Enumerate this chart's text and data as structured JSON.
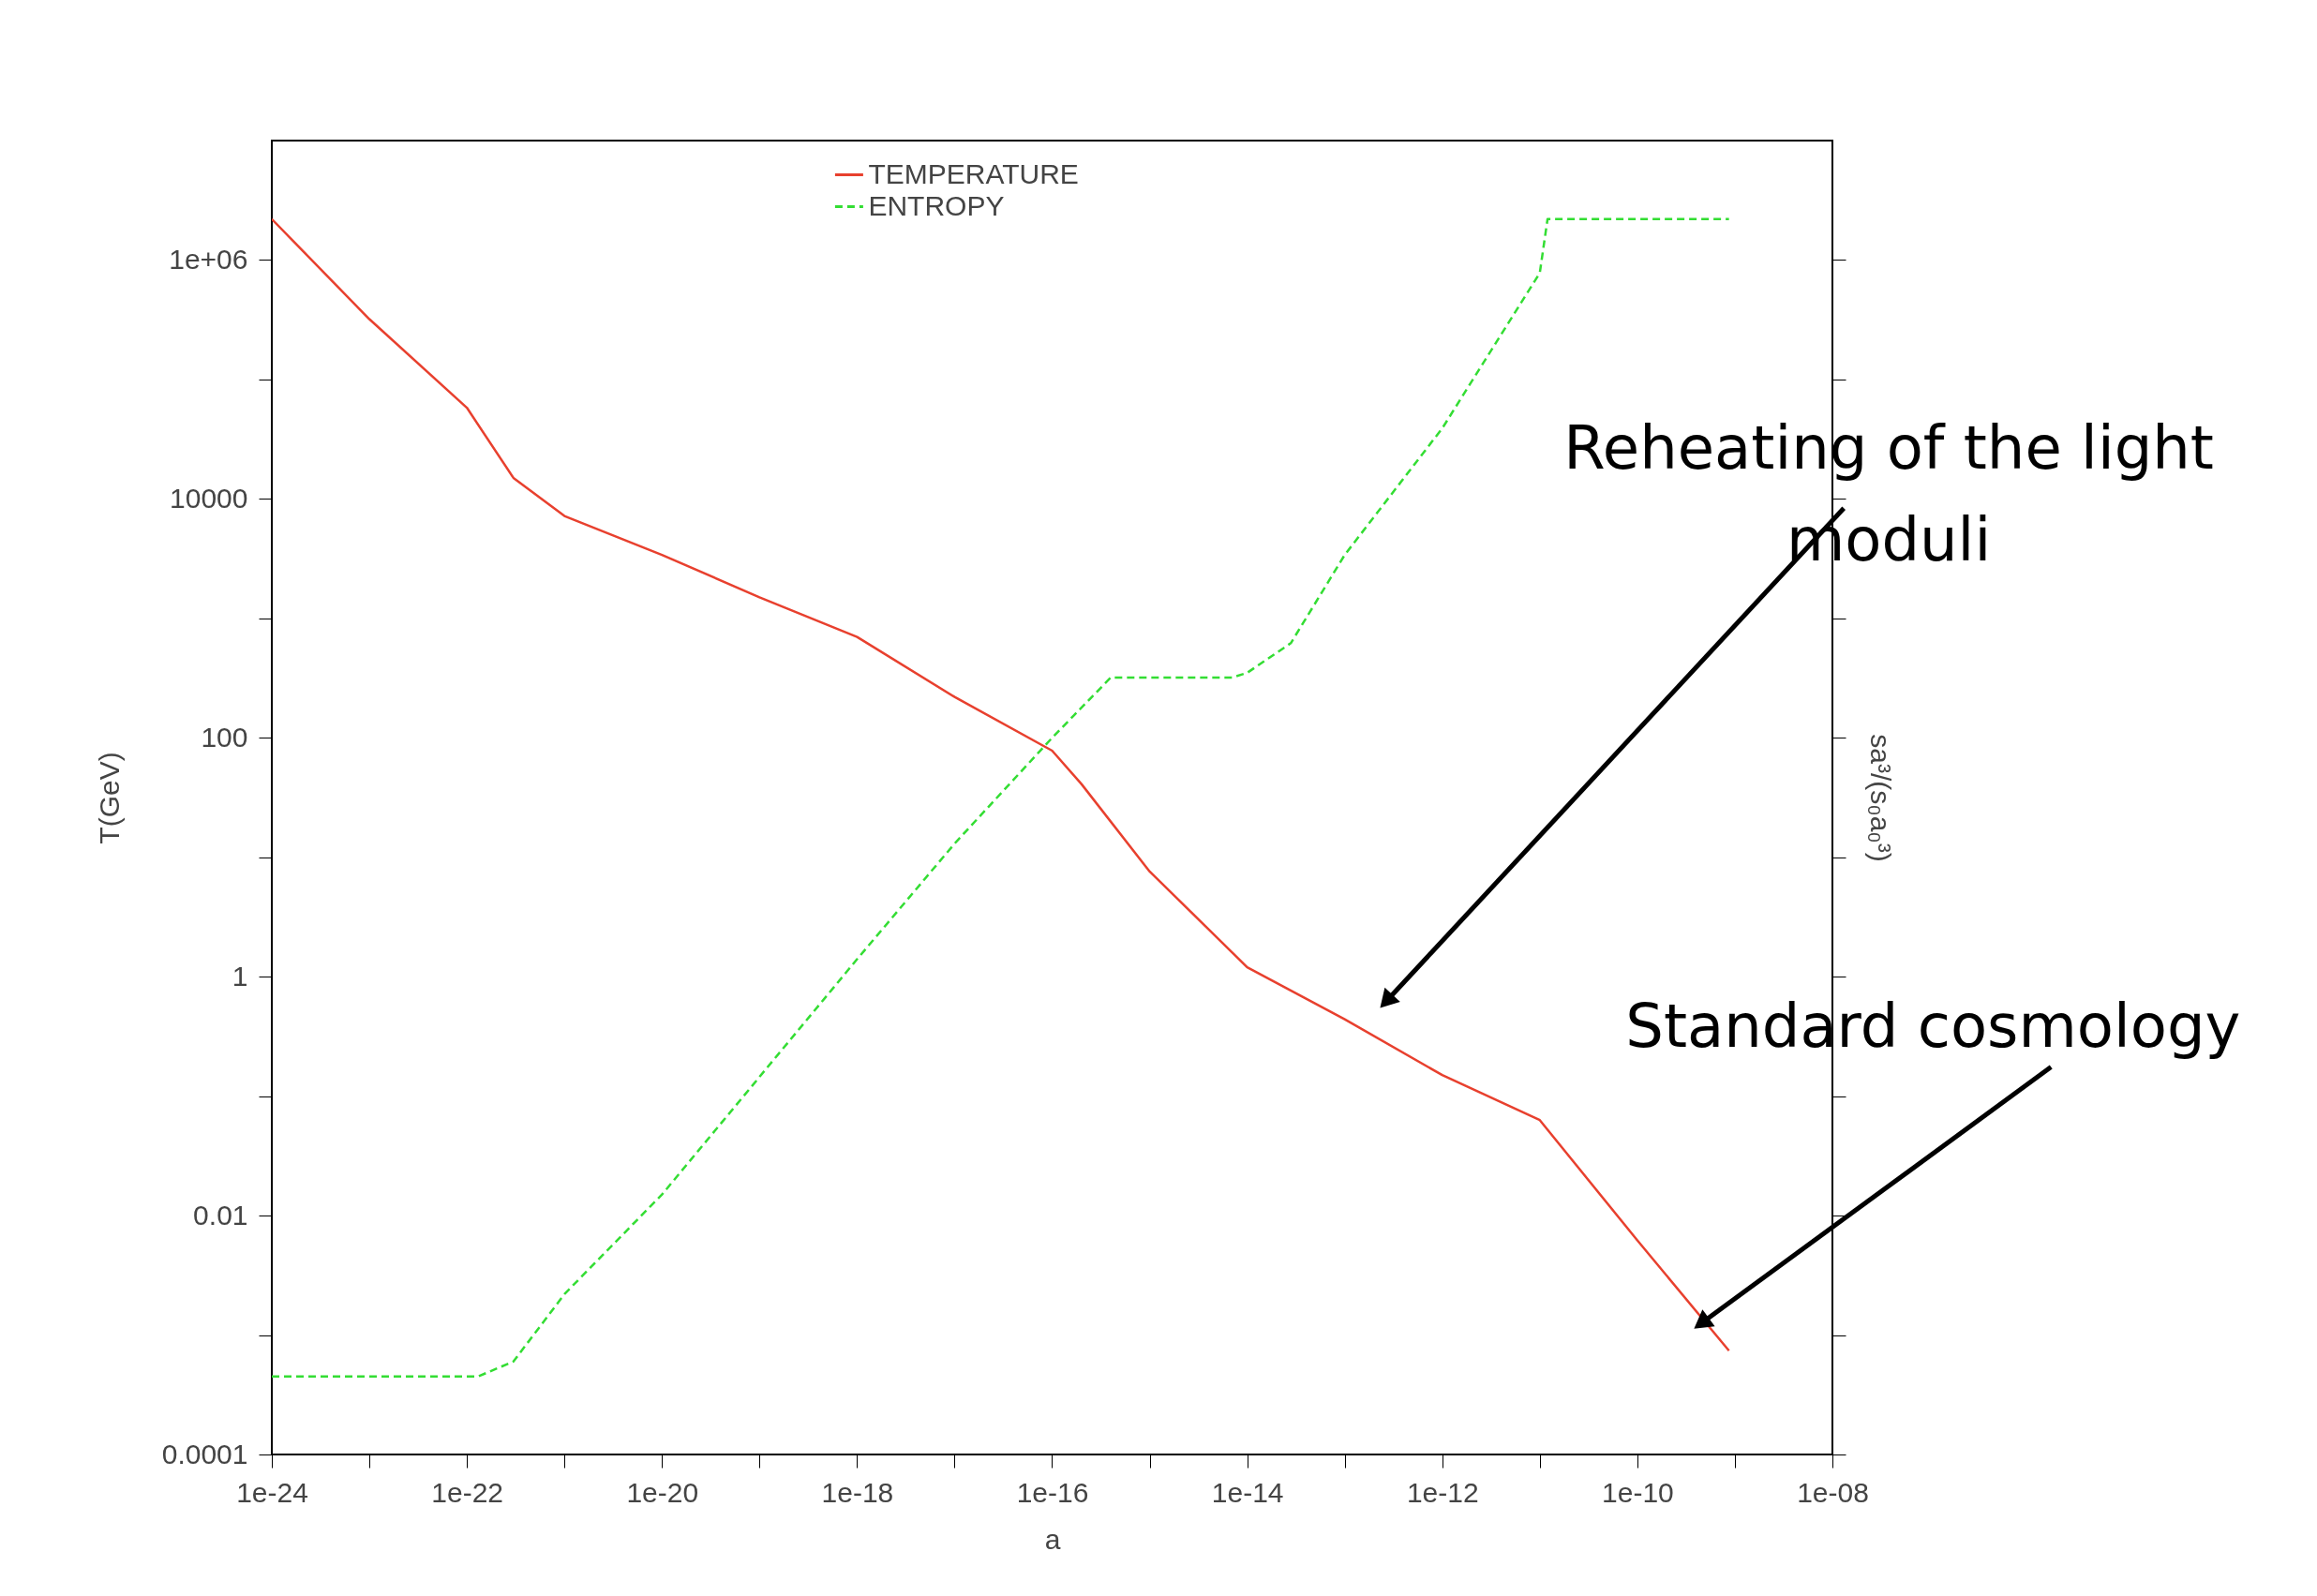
{
  "chart_data": {
    "type": "line",
    "xlabel": "a",
    "ylabel": "T(GeV)",
    "y2label": "sa³/(s₀a₀³)",
    "log": "xy",
    "grid": false,
    "legend": "top",
    "marker": "none",
    "xlim": [
      1e-24,
      1e-08
    ],
    "ylim": [
      0.0001,
      10000000
    ],
    "xticks": [
      {
        "value": 1e-24,
        "label": "1e-24"
      },
      {
        "value": 1e-23,
        "label": null
      },
      {
        "value": 1e-22,
        "label": "1e-22"
      },
      {
        "value": 1e-21,
        "label": null
      },
      {
        "value": 1e-20,
        "label": "1e-20"
      },
      {
        "value": 1e-19,
        "label": null
      },
      {
        "value": 1e-18,
        "label": "1e-18"
      },
      {
        "value": 1e-17,
        "label": null
      },
      {
        "value": 1e-16,
        "label": "1e-16"
      },
      {
        "value": 1e-15,
        "label": null
      },
      {
        "value": 1e-14,
        "label": "1e-14"
      },
      {
        "value": 1e-13,
        "label": null
      },
      {
        "value": 1e-12,
        "label": "1e-12"
      },
      {
        "value": 1e-11,
        "label": null
      },
      {
        "value": 1e-10,
        "label": "1e-10"
      },
      {
        "value": 1e-09,
        "label": null
      },
      {
        "value": 1e-08,
        "label": "1e-08"
      }
    ],
    "yticks": [
      {
        "value": 0.0001,
        "label": "0.0001"
      },
      {
        "value": 0.001,
        "label": null
      },
      {
        "value": 0.01,
        "label": "0.01"
      },
      {
        "value": 0.1,
        "label": null
      },
      {
        "value": 1,
        "label": "1"
      },
      {
        "value": 10,
        "label": null
      },
      {
        "value": 100,
        "label": "100"
      },
      {
        "value": 1000,
        "label": null
      },
      {
        "value": 10000,
        "label": "10000"
      },
      {
        "value": 100000,
        "label": null
      },
      {
        "value": 1000000,
        "label": "1e+06"
      }
    ],
    "series": [
      {
        "name": "TEMPERATURE",
        "color": "#e8402e",
        "line_style": "solid",
        "x": [
          1e-24,
          1e-23,
          1e-22,
          3e-22,
          1e-21,
          1e-20,
          1e-19,
          1e-18,
          1e-17,
          1e-16,
          2e-16,
          1e-15,
          1e-14,
          1e-13,
          1e-12,
          1e-11,
          1e-10,
          8.7e-10
        ],
        "values": [
          2200000.0,
          320000.0,
          58000.0,
          15000.0,
          7200,
          3400,
          1500,
          700,
          220,
          78,
          41,
          7.6,
          1.2,
          0.44,
          0.15,
          0.063,
          0.0062,
          0.00074
        ]
      },
      {
        "name": "ENTROPY",
        "color": "#33dd33",
        "line_style": "dashed",
        "x": [
          1e-24,
          1.3e-22,
          3e-22,
          1e-21,
          1e-20,
          1e-18,
          1e-17,
          1e-16,
          4e-16,
          7e-15,
          1e-14,
          2.8e-14,
          1e-13,
          1e-12,
          1e-11,
          1.2e-11,
          8.7e-10
        ],
        "values": [
          0.00045,
          0.00045,
          0.0006,
          0.0022,
          0.015,
          1.4,
          13,
          100,
          320,
          320,
          350,
          620,
          3400,
          39000.0,
          780000.0,
          2200000.0,
          2200000.0
        ]
      }
    ],
    "annotations": [
      {
        "text": "Reheating of the light moduli",
        "x": 2.8e-13,
        "y": 0.65
      },
      {
        "text": "Standard cosmology",
        "x": 4.8e-10,
        "y": 0.0013
      }
    ]
  }
}
